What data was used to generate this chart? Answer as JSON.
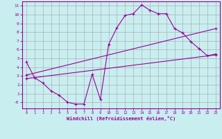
{
  "xlabel": "Windchill (Refroidissement éolien,°C)",
  "bg_color": "#c8eef0",
  "line_color": "#990099",
  "grid_color": "#b0b0b0",
  "xlim": [
    -0.5,
    23.5
  ],
  "ylim": [
    -0.7,
    11.5
  ],
  "xticks": [
    0,
    1,
    2,
    3,
    4,
    5,
    6,
    7,
    8,
    9,
    10,
    11,
    12,
    13,
    14,
    15,
    16,
    17,
    18,
    19,
    20,
    21,
    22,
    23
  ],
  "yticks": [
    0,
    1,
    2,
    3,
    4,
    5,
    6,
    7,
    8,
    9,
    10,
    11
  ],
  "line1_x": [
    0,
    1,
    2,
    3,
    4,
    5,
    6,
    7,
    8,
    9,
    10,
    11,
    12,
    13,
    14,
    15,
    16,
    17,
    18,
    19,
    20,
    21,
    22,
    23
  ],
  "line1_y": [
    4.6,
    2.8,
    2.2,
    1.3,
    0.8,
    0.0,
    -0.2,
    -0.2,
    3.2,
    0.3,
    6.6,
    8.5,
    9.9,
    10.1,
    11.1,
    10.5,
    10.1,
    10.1,
    8.4,
    7.9,
    6.9,
    6.1,
    5.3,
    5.5
  ],
  "line2_x": [
    0,
    23
  ],
  "line2_y": [
    2.7,
    5.4
  ],
  "line3_x": [
    0,
    23
  ],
  "line3_y": [
    3.1,
    8.4
  ]
}
